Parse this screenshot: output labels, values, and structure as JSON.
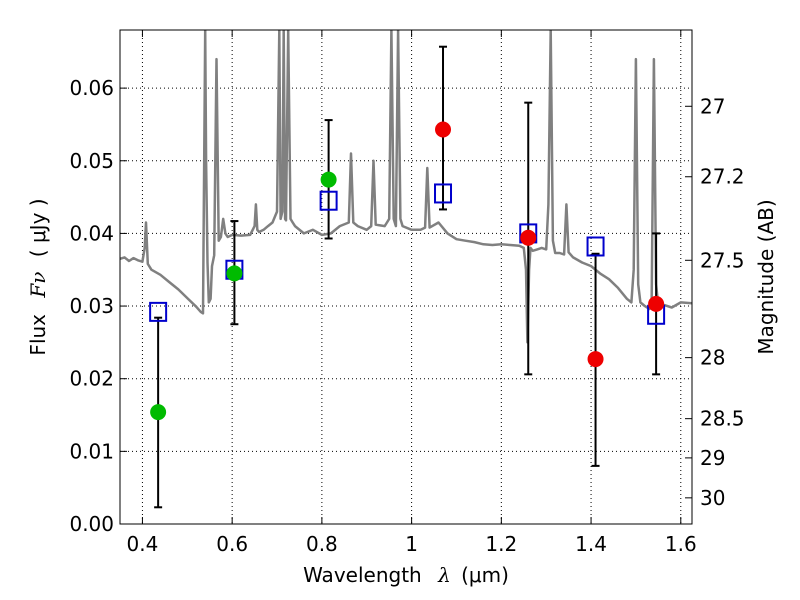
{
  "chart_data": {
    "type": "scatter",
    "xlabel": {
      "prefix": "Wavelength",
      "symbol": "λ",
      "unit": "(μm)"
    },
    "ylabel": {
      "prefix": "Flux",
      "symbol": "Fν",
      "unit": "( μJy )"
    },
    "ylabel_right": "Magnitude (AB)",
    "xlim": [
      0.35,
      1.625
    ],
    "ylim": [
      0.0,
      0.068
    ],
    "grid": true,
    "x_ticks": [
      0.4,
      0.6,
      0.8,
      1.0,
      1.2,
      1.4,
      1.6
    ],
    "x_tick_labels": [
      "0.4",
      "0.6",
      "0.8",
      "1",
      "1.2",
      "1.4",
      "1.6"
    ],
    "y_ticks": [
      0.0,
      0.01,
      0.02,
      0.03,
      0.04,
      0.05,
      0.06
    ],
    "y_tick_labels": [
      "0.00",
      "0.01",
      "0.02",
      "0.03",
      "0.04",
      "0.05",
      "0.06"
    ],
    "right_ticks": [
      {
        "label": "27",
        "flux": 0.0575
      },
      {
        "label": "27.2",
        "flux": 0.0478
      },
      {
        "label": "27.5",
        "flux": 0.0363
      },
      {
        "label": "28",
        "flux": 0.0229
      },
      {
        "label": "28.5",
        "flux": 0.0145
      },
      {
        "label": "29",
        "flux": 0.0091
      },
      {
        "label": "30",
        "flux": 0.0036
      }
    ],
    "series": [
      {
        "color": "#808080",
        "kind": "line",
        "x": [
          0.35,
          0.36,
          0.37,
          0.38,
          0.39,
          0.4,
          0.405,
          0.408,
          0.412,
          0.42,
          0.44,
          0.46,
          0.48,
          0.5,
          0.52,
          0.53,
          0.535,
          0.54,
          0.542,
          0.545,
          0.548,
          0.552,
          0.555,
          0.56,
          0.565,
          0.57,
          0.575,
          0.58,
          0.585,
          0.59,
          0.6,
          0.62,
          0.64,
          0.65,
          0.653,
          0.656,
          0.66,
          0.67,
          0.68,
          0.69,
          0.7,
          0.705,
          0.708,
          0.712,
          0.715,
          0.718,
          0.72,
          0.725,
          0.73,
          0.735,
          0.74,
          0.76,
          0.78,
          0.8,
          0.82,
          0.84,
          0.86,
          0.865,
          0.87,
          0.88,
          0.9,
          0.91,
          0.915,
          0.92,
          0.94,
          0.95,
          0.955,
          0.96,
          0.965,
          0.97,
          0.975,
          0.98,
          1.0,
          1.02,
          1.03,
          1.035,
          1.04,
          1.06,
          1.08,
          1.1,
          1.12,
          1.14,
          1.16,
          1.18,
          1.2,
          1.22,
          1.24,
          1.25,
          1.255,
          1.258,
          1.262,
          1.265,
          1.27,
          1.28,
          1.29,
          1.3,
          1.305,
          1.31,
          1.315,
          1.32,
          1.33,
          1.34,
          1.345,
          1.35,
          1.36,
          1.38,
          1.4,
          1.42,
          1.44,
          1.46,
          1.48,
          1.49,
          1.495,
          1.5,
          1.505,
          1.51,
          1.52,
          1.53,
          1.535,
          1.54,
          1.545,
          1.55,
          1.56,
          1.58,
          1.6,
          1.625
        ],
        "y": [
          0.0365,
          0.0367,
          0.0362,
          0.0366,
          0.0363,
          0.0361,
          0.038,
          0.0415,
          0.0358,
          0.035,
          0.0343,
          0.0333,
          0.0323,
          0.0311,
          0.0299,
          0.0292,
          0.029,
          0.068,
          0.05,
          0.036,
          0.0305,
          0.031,
          0.0355,
          0.037,
          0.064,
          0.039,
          0.0395,
          0.042,
          0.04,
          0.0395,
          0.0398,
          0.0397,
          0.0398,
          0.041,
          0.044,
          0.0405,
          0.0402,
          0.0405,
          0.041,
          0.0415,
          0.043,
          0.068,
          0.042,
          0.043,
          0.068,
          0.042,
          0.0418,
          0.068,
          0.042,
          0.0415,
          0.041,
          0.04,
          0.0405,
          0.0398,
          0.04,
          0.041,
          0.0415,
          0.051,
          0.0415,
          0.041,
          0.0405,
          0.041,
          0.05,
          0.0412,
          0.041,
          0.042,
          0.068,
          0.042,
          0.041,
          0.068,
          0.042,
          0.041,
          0.0405,
          0.0405,
          0.0408,
          0.049,
          0.0408,
          0.0415,
          0.04,
          0.0392,
          0.039,
          0.0388,
          0.0385,
          0.0384,
          0.0385,
          0.0384,
          0.0383,
          0.038,
          0.035,
          0.025,
          0.035,
          0.038,
          0.0376,
          0.0378,
          0.038,
          0.0378,
          0.044,
          0.068,
          0.039,
          0.0373,
          0.0373,
          0.0371,
          0.044,
          0.0374,
          0.0367,
          0.036,
          0.0355,
          0.0345,
          0.0337,
          0.0325,
          0.031,
          0.0305,
          0.035,
          0.064,
          0.033,
          0.0305,
          0.03,
          0.0296,
          0.03,
          0.064,
          0.033,
          0.0298,
          0.0302,
          0.0298,
          0.0305,
          0.0304
        ]
      },
      {
        "color": "#0000cc",
        "kind": "open-square",
        "x": [
          0.435,
          0.605,
          0.815,
          1.07,
          1.26,
          1.41,
          1.545
        ],
        "y": [
          0.0292,
          0.035,
          0.0445,
          0.0455,
          0.04,
          0.0382,
          0.0288
        ]
      },
      {
        "color": "#00bb00",
        "kind": "filled-circle",
        "x": [
          0.435,
          0.605,
          0.815
        ],
        "y": [
          0.0154,
          0.0345,
          0.0474
        ]
      },
      {
        "color": "#ee0000",
        "kind": "filled-circle",
        "x": [
          1.07,
          1.26,
          1.41,
          1.545
        ],
        "y": [
          0.0543,
          0.0394,
          0.0227,
          0.0303
        ]
      }
    ],
    "error_bars": [
      {
        "x": 0.435,
        "low": 0.0023,
        "high": 0.0284
      },
      {
        "x": 0.605,
        "low": 0.0275,
        "high": 0.0417
      },
      {
        "x": 0.815,
        "low": 0.0393,
        "high": 0.0556
      },
      {
        "x": 1.07,
        "low": 0.0433,
        "high": 0.0657
      },
      {
        "x": 1.26,
        "low": 0.0206,
        "high": 0.058
      },
      {
        "x": 1.41,
        "low": 0.008,
        "high": 0.0372
      },
      {
        "x": 1.545,
        "low": 0.0206,
        "high": 0.04
      }
    ]
  }
}
